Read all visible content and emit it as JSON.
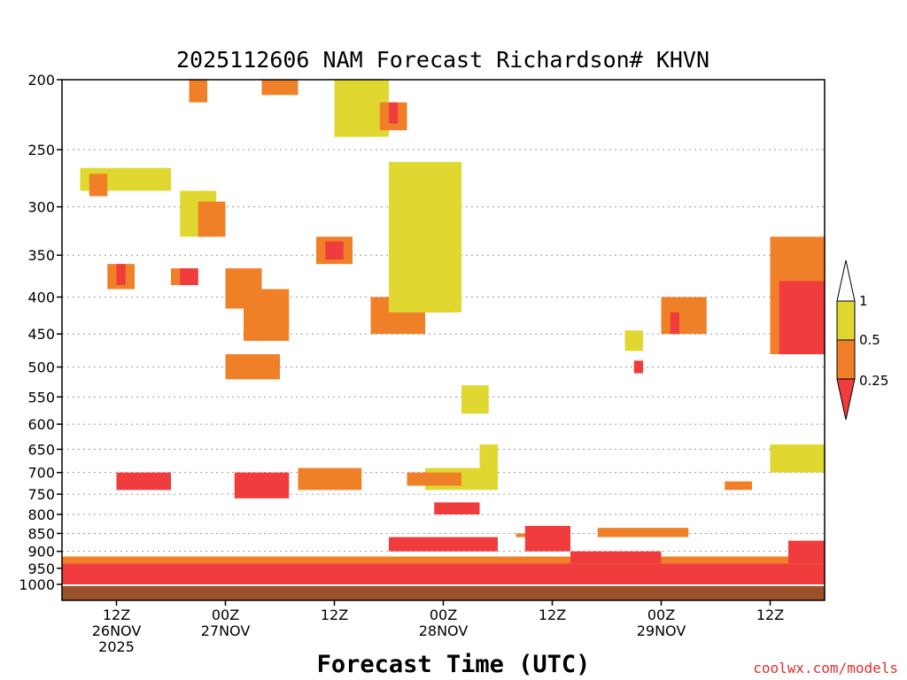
{
  "chart_data": {
    "type": "heatmap",
    "title": "2025112606 NAM Forecast Richardson# KHVN",
    "xlabel": "Forecast Time (UTC)",
    "ylabel": "",
    "credit": "coolwx.com/models",
    "y_axis": {
      "scale": "log-pressure",
      "range": [
        1000,
        200
      ],
      "ticks": [
        "200",
        "250",
        "300",
        "350",
        "400",
        "450",
        "500",
        "550",
        "600",
        "650",
        "700",
        "750",
        "800",
        "850",
        "900",
        "950",
        "1000"
      ]
    },
    "x_axis": {
      "range": [
        "2025-11-26 06Z",
        "2025-11-29 18Z"
      ],
      "ticks": [
        {
          "label": "12Z",
          "sub1": "26NOV",
          "sub2": "2025"
        },
        {
          "label": "00Z",
          "sub1": "27NOV",
          "sub2": ""
        },
        {
          "label": "12Z",
          "sub1": "",
          "sub2": ""
        },
        {
          "label": "00Z",
          "sub1": "28NOV",
          "sub2": ""
        },
        {
          "label": "12Z",
          "sub1": "",
          "sub2": ""
        },
        {
          "label": "00Z",
          "sub1": "29NOV",
          "sub2": ""
        },
        {
          "label": "12Z",
          "sub1": "",
          "sub2": ""
        }
      ]
    },
    "grid": "dotted horizontal at pressure ticks",
    "legend": {
      "placement": "right",
      "bins": [
        {
          "range": "> 1",
          "color": "#ffffff"
        },
        {
          "range": "0.5 - 1",
          "color": "#e0d830"
        },
        {
          "range": "0.25 - 0.5",
          "color": "#f08028"
        },
        {
          "range": "< 0.25",
          "color": "#f03c3c"
        }
      ],
      "labels": [
        "1",
        "0.5",
        "0.25"
      ]
    },
    "ground_color": "#9a5028",
    "categories": [
      "< 0.25",
      "0.25 - 0.5",
      "0.5 - 1"
    ],
    "patches": [
      {
        "t": [
          0,
          84
        ],
        "p": [
          1000,
          935
        ],
        "cat": "< 0.25"
      },
      {
        "t": [
          0,
          84
        ],
        "p": [
          935,
          915
        ],
        "cat": "0.25 - 0.5"
      },
      {
        "t": [
          2,
          12
        ],
        "p": [
          285,
          265
        ],
        "cat": "0.5 - 1"
      },
      {
        "t": [
          3,
          5
        ],
        "p": [
          290,
          270
        ],
        "cat": "0.25 - 0.5"
      },
      {
        "t": [
          5,
          8
        ],
        "p": [
          360,
          390
        ],
        "cat": "0.25 - 0.5"
      },
      {
        "t": [
          6,
          7
        ],
        "p": [
          360,
          385
        ],
        "cat": "< 0.25"
      },
      {
        "t": [
          12,
          15
        ],
        "p": [
          365,
          385
        ],
        "cat": "0.25 - 0.5"
      },
      {
        "t": [
          13,
          15
        ],
        "p": [
          365,
          385
        ],
        "cat": "< 0.25"
      },
      {
        "t": [
          13,
          17
        ],
        "p": [
          285,
          330
        ],
        "cat": "0.5 - 1"
      },
      {
        "t": [
          15,
          18
        ],
        "p": [
          295,
          330
        ],
        "cat": "0.25 - 0.5"
      },
      {
        "t": [
          18,
          22
        ],
        "p": [
          365,
          415
        ],
        "cat": "0.25 - 0.5"
      },
      {
        "t": [
          20,
          25
        ],
        "p": [
          390,
          460
        ],
        "cat": "0.25 - 0.5"
      },
      {
        "t": [
          18,
          24
        ],
        "p": [
          480,
          520
        ],
        "cat": "0.25 - 0.5"
      },
      {
        "t": [
          14,
          16
        ],
        "p": [
          200,
          215
        ],
        "cat": "0.25 - 0.5"
      },
      {
        "t": [
          22,
          26
        ],
        "p": [
          200,
          210
        ],
        "cat": "0.25 - 0.5"
      },
      {
        "t": [
          30,
          36
        ],
        "p": [
          200,
          240
        ],
        "cat": "0.5 - 1"
      },
      {
        "t": [
          35,
          38
        ],
        "p": [
          215,
          235
        ],
        "cat": "0.25 - 0.5"
      },
      {
        "t": [
          36,
          37
        ],
        "p": [
          215,
          230
        ],
        "cat": "< 0.25"
      },
      {
        "t": [
          28,
          32
        ],
        "p": [
          330,
          360
        ],
        "cat": "0.25 - 0.5"
      },
      {
        "t": [
          29,
          31
        ],
        "p": [
          335,
          355
        ],
        "cat": "< 0.25"
      },
      {
        "t": [
          37,
          43
        ],
        "p": [
          360,
          420
        ],
        "cat": "0.25 - 0.5"
      },
      {
        "t": [
          38,
          41
        ],
        "p": [
          365,
          400
        ],
        "cat": "< 0.25"
      },
      {
        "t": [
          34,
          40
        ],
        "p": [
          400,
          450
        ],
        "cat": "0.25 - 0.5"
      },
      {
        "t": [
          36,
          44
        ],
        "p": [
          260,
          420
        ],
        "cat": "0.5 - 1"
      },
      {
        "t": [
          44,
          47
        ],
        "p": [
          530,
          580
        ],
        "cat": "0.5 - 1"
      },
      {
        "t": [
          40,
          48
        ],
        "p": [
          690,
          740
        ],
        "cat": "0.5 - 1"
      },
      {
        "t": [
          6,
          12
        ],
        "p": [
          700,
          740
        ],
        "cat": "< 0.25"
      },
      {
        "t": [
          19,
          25
        ],
        "p": [
          700,
          760
        ],
        "cat": "< 0.25"
      },
      {
        "t": [
          26,
          33
        ],
        "p": [
          690,
          740
        ],
        "cat": "0.25 - 0.5"
      },
      {
        "t": [
          38,
          44
        ],
        "p": [
          700,
          730
        ],
        "cat": "0.25 - 0.5"
      },
      {
        "t": [
          36,
          48
        ],
        "p": [
          860,
          900
        ],
        "cat": "< 0.25"
      },
      {
        "t": [
          41,
          46
        ],
        "p": [
          770,
          800
        ],
        "cat": "< 0.25"
      },
      {
        "t": [
          46,
          48
        ],
        "p": [
          640,
          700
        ],
        "cat": "0.5 - 1"
      },
      {
        "t": [
          50,
          52
        ],
        "p": [
          850,
          860
        ],
        "cat": "0.25 - 0.5"
      },
      {
        "t": [
          51,
          56
        ],
        "p": [
          830,
          900
        ],
        "cat": "< 0.25"
      },
      {
        "t": [
          56,
          66
        ],
        "p": [
          900,
          935
        ],
        "cat": "< 0.25"
      },
      {
        "t": [
          59,
          69
        ],
        "p": [
          835,
          860
        ],
        "cat": "0.25 - 0.5"
      },
      {
        "t": [
          62,
          64
        ],
        "p": [
          445,
          475
        ],
        "cat": "0.5 - 1"
      },
      {
        "t": [
          63,
          64
        ],
        "p": [
          490,
          510
        ],
        "cat": "< 0.25"
      },
      {
        "t": [
          66,
          71
        ],
        "p": [
          400,
          450
        ],
        "cat": "0.25 - 0.5"
      },
      {
        "t": [
          67,
          68
        ],
        "p": [
          420,
          450
        ],
        "cat": "< 0.25"
      },
      {
        "t": [
          73,
          76
        ],
        "p": [
          720,
          740
        ],
        "cat": "0.25 - 0.5"
      },
      {
        "t": [
          78,
          84
        ],
        "p": [
          330,
          480
        ],
        "cat": "0.25 - 0.5"
      },
      {
        "t": [
          79,
          84
        ],
        "p": [
          380,
          480
        ],
        "cat": "< 0.25"
      },
      {
        "t": [
          80,
          84
        ],
        "p": [
          870,
          935
        ],
        "cat": "< 0.25"
      },
      {
        "t": [
          78,
          84
        ],
        "p": [
          640,
          700
        ],
        "cat": "0.5 - 1"
      }
    ]
  }
}
